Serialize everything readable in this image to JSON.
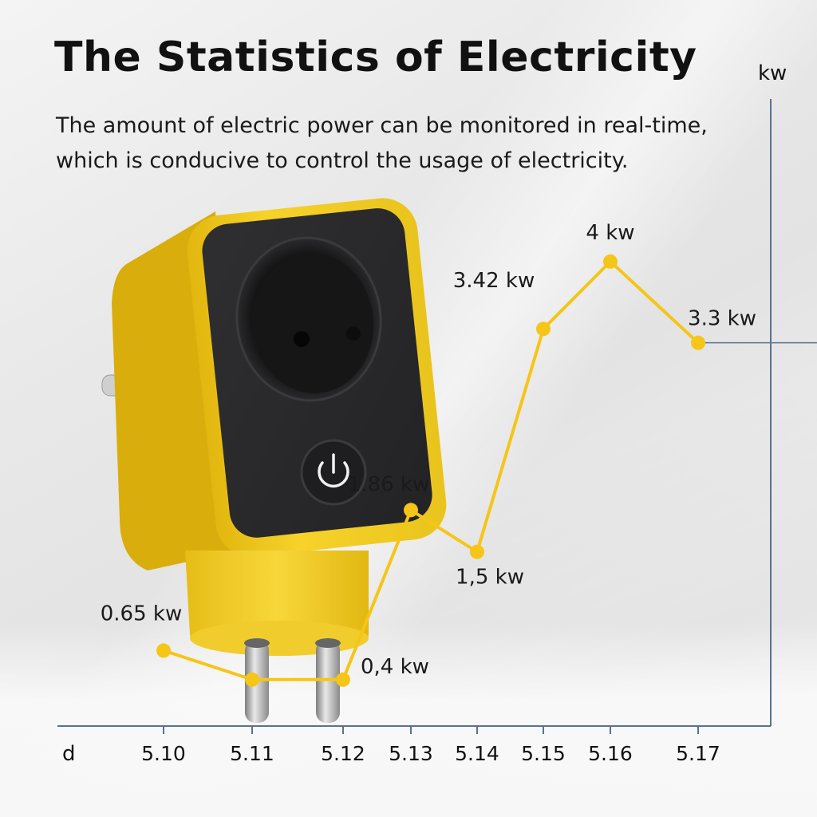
{
  "title": "The Statistics of Electricity",
  "subtitle": "The amount of electric power can be monitored in real-time, which is conducive to control the usage of electricity.",
  "colors": {
    "line": "#f5c518",
    "axis": "#5a7290",
    "device_body": "#f5d02a",
    "device_face": "#2b2b2d"
  },
  "icons": {
    "device": "smart-plug-icon",
    "power": "power-icon"
  },
  "chart_data": {
    "type": "line",
    "title": "The Statistics of Electricity",
    "xlabel": "d",
    "ylabel": "kw",
    "categories": [
      "5.10",
      "5.11",
      "5.12",
      "5.13",
      "5.14",
      "5.15",
      "5.16",
      "5.17"
    ],
    "values": [
      0.65,
      0.4,
      0.4,
      1.86,
      1.5,
      3.42,
      4,
      3.3
    ],
    "data_labels": [
      "0.65 kw",
      "",
      "0,4 kw",
      "1.86 kw",
      "1,5 kw",
      "3.42 kw",
      "4 kw",
      "3.3 kw"
    ],
    "ylim": [
      0,
      5.4
    ],
    "grid": false,
    "legend": "none"
  }
}
